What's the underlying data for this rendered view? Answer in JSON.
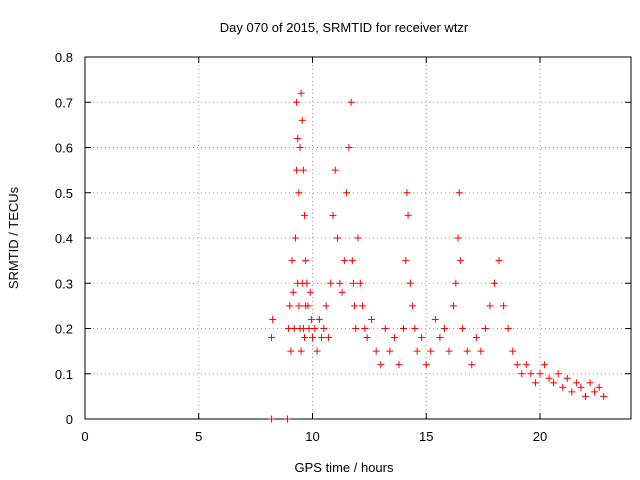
{
  "chart_data": {
    "type": "scatter",
    "title": "Day 070 of 2015, SRMTID for receiver wtzr",
    "xlabel": "GPS time / hours",
    "ylabel": "SRMTID / TECUs",
    "xlim": [
      0,
      24
    ],
    "ylim": [
      0,
      0.8
    ],
    "xticks": [
      0,
      5,
      10,
      15,
      20
    ],
    "xtick_labels": [
      "0",
      "5",
      "10",
      "15",
      "20"
    ],
    "yticks": [
      0,
      0.1,
      0.2,
      0.3,
      0.4,
      0.5,
      0.6,
      0.7,
      0.8
    ],
    "ytick_labels": [
      "0",
      "0.1",
      "0.2",
      "0.3",
      "0.4",
      "0.5",
      "0.6",
      "0.7",
      "0.8"
    ],
    "grid": true,
    "marker": "+",
    "color": "#ff0000",
    "series": [
      {
        "name": "SRMTID",
        "x": [
          8.2,
          8.2,
          8.25,
          8.9,
          8.95,
          9.0,
          9.05,
          9.1,
          9.15,
          9.2,
          9.25,
          9.3,
          9.3,
          9.35,
          9.35,
          9.4,
          9.4,
          9.45,
          9.45,
          9.5,
          9.5,
          9.55,
          9.55,
          9.6,
          9.6,
          9.65,
          9.65,
          9.7,
          9.7,
          9.75,
          9.8,
          9.85,
          9.9,
          9.95,
          10.0,
          10.1,
          10.2,
          10.3,
          10.4,
          10.5,
          10.6,
          10.7,
          10.8,
          10.9,
          11.0,
          11.1,
          11.2,
          11.3,
          11.4,
          11.5,
          11.6,
          11.7,
          11.75,
          11.8,
          11.85,
          11.9,
          12.0,
          12.1,
          12.2,
          12.3,
          12.4,
          12.6,
          12.8,
          13.0,
          13.2,
          13.4,
          13.6,
          13.8,
          14.0,
          14.1,
          14.15,
          14.2,
          14.3,
          14.4,
          14.5,
          14.6,
          14.8,
          15.0,
          15.2,
          15.4,
          15.6,
          15.8,
          16.0,
          16.2,
          16.3,
          16.4,
          16.45,
          16.5,
          16.6,
          16.8,
          17.0,
          17.2,
          17.4,
          17.6,
          17.8,
          18.0,
          18.2,
          18.4,
          18.6,
          18.8,
          19.0,
          19.2,
          19.4,
          19.6,
          19.8,
          20.0,
          20.2,
          20.4,
          20.6,
          20.8,
          21.0,
          21.2,
          21.4,
          21.6,
          21.8,
          22.0,
          22.2,
          22.4,
          22.6,
          22.8
        ],
        "y": [
          0.0,
          0.18,
          0.22,
          0.0,
          0.2,
          0.25,
          0.15,
          0.35,
          0.28,
          0.2,
          0.4,
          0.55,
          0.7,
          0.62,
          0.3,
          0.5,
          0.25,
          0.6,
          0.2,
          0.72,
          0.15,
          0.66,
          0.3,
          0.55,
          0.2,
          0.45,
          0.18,
          0.35,
          0.25,
          0.3,
          0.25,
          0.2,
          0.28,
          0.22,
          0.18,
          0.2,
          0.15,
          0.22,
          0.18,
          0.2,
          0.25,
          0.18,
          0.3,
          0.45,
          0.55,
          0.4,
          0.3,
          0.28,
          0.35,
          0.5,
          0.6,
          0.7,
          0.35,
          0.3,
          0.25,
          0.2,
          0.4,
          0.3,
          0.25,
          0.2,
          0.18,
          0.22,
          0.15,
          0.12,
          0.2,
          0.15,
          0.18,
          0.12,
          0.2,
          0.35,
          0.5,
          0.45,
          0.3,
          0.25,
          0.2,
          0.15,
          0.18,
          0.12,
          0.15,
          0.22,
          0.18,
          0.2,
          0.15,
          0.25,
          0.3,
          0.4,
          0.5,
          0.35,
          0.2,
          0.15,
          0.12,
          0.18,
          0.15,
          0.2,
          0.25,
          0.3,
          0.35,
          0.25,
          0.2,
          0.15,
          0.12,
          0.1,
          0.12,
          0.1,
          0.08,
          0.1,
          0.12,
          0.09,
          0.08,
          0.1,
          0.07,
          0.09,
          0.06,
          0.08,
          0.07,
          0.05,
          0.08,
          0.06,
          0.07,
          0.05
        ]
      }
    ]
  }
}
